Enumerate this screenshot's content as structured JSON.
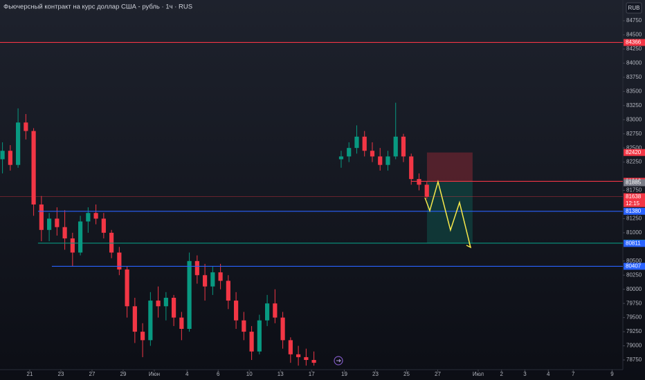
{
  "chart_data": {
    "type": "candlestick",
    "title": "Фьючерсный контракт на курс доллар США - рубль · 1ч · RUS",
    "currency": "RUB",
    "xlim": [
      -1.91,
      38.09
    ],
    "ylim": [
      78579,
      85117
    ],
    "xticks": [
      {
        "value": 0,
        "label": "21"
      },
      {
        "value": 2,
        "label": "23"
      },
      {
        "value": 4,
        "label": "27"
      },
      {
        "value": 6,
        "label": "29"
      },
      {
        "value": 8,
        "label": "Июн"
      },
      {
        "value": 10.1,
        "label": "4"
      },
      {
        "value": 12.1,
        "label": "6"
      },
      {
        "value": 14.1,
        "label": "10"
      },
      {
        "value": 16.1,
        "label": "13"
      },
      {
        "value": 18.1,
        "label": "17"
      },
      {
        "value": 20.2,
        "label": "19"
      },
      {
        "value": 22.2,
        "label": "23"
      },
      {
        "value": 24.2,
        "label": "25"
      },
      {
        "value": 26.2,
        "label": "27"
      },
      {
        "value": 28.8,
        "label": "Июл"
      },
      {
        "value": 30.3,
        "label": "2"
      },
      {
        "value": 31.8,
        "label": "3"
      },
      {
        "value": 33.3,
        "label": "4"
      },
      {
        "value": 34.9,
        "label": "7"
      },
      {
        "value": 37.4,
        "label": "9"
      }
    ],
    "yticks": [
      84750,
      84500,
      84250,
      84000,
      83750,
      83500,
      83250,
      83000,
      82750,
      82500,
      82250,
      81750,
      81250,
      81000,
      80500,
      80250,
      80000,
      79750,
      79500,
      79250,
      79000,
      78750
    ],
    "up_color": "#089981",
    "down_color": "#f23645",
    "candles": {
      "x": [
        -1.75,
        -1.25,
        -0.75,
        -0.25,
        0.25,
        0.75,
        1.25,
        1.75,
        2.25,
        2.75,
        3.25,
        3.75,
        4.25,
        4.75,
        5.25,
        5.75,
        6.25,
        6.75,
        7.25,
        7.75,
        8.25,
        8.75,
        9.25,
        9.75,
        10.25,
        10.75,
        11.25,
        11.75,
        12.25,
        12.75,
        13.25,
        13.75,
        14.25,
        14.75,
        15.25,
        15.75,
        16.25,
        16.75,
        17.25,
        17.75,
        18.25,
        20.0,
        20.5,
        21.0,
        21.5,
        22.0,
        22.5,
        23.0,
        23.5,
        24.0,
        24.5,
        25.0,
        25.5
      ],
      "open": [
        82300,
        82450,
        82200,
        82950,
        82800,
        81500,
        81050,
        81250,
        81100,
        80900,
        80650,
        81200,
        81350,
        81250,
        81000,
        80650,
        80350,
        79700,
        79250,
        79100,
        79800,
        79700,
        79850,
        79500,
        79300,
        80500,
        80250,
        80050,
        80300,
        80150,
        79800,
        79450,
        79250,
        78900,
        79450,
        79750,
        79500,
        79100,
        78850,
        78800,
        78750,
        82300,
        82350,
        82500,
        82700,
        82450,
        82350,
        82200,
        82350,
        82700,
        82350,
        81950,
        81850
      ],
      "high": [
        82600,
        82550,
        83200,
        83100,
        82850,
        81650,
        81350,
        81450,
        81400,
        81000,
        81300,
        81450,
        81500,
        81350,
        81050,
        80750,
        80400,
        79850,
        79400,
        79950,
        80050,
        79950,
        79900,
        79600,
        80650,
        80600,
        80450,
        80400,
        80450,
        80250,
        79950,
        79600,
        79350,
        79550,
        79900,
        80000,
        79600,
        79150,
        79000,
        78950,
        78900,
        82450,
        82600,
        82900,
        82800,
        82600,
        82500,
        82450,
        83300,
        82750,
        82400,
        82050,
        81900
      ],
      "low": [
        82050,
        82100,
        82150,
        82650,
        81300,
        80850,
        80850,
        80950,
        80700,
        80400,
        80600,
        81000,
        81150,
        80900,
        80550,
        80250,
        79500,
        79050,
        78800,
        79000,
        79500,
        79450,
        79350,
        79100,
        79250,
        80100,
        79800,
        79900,
        80000,
        79650,
        79300,
        79100,
        78750,
        78850,
        79350,
        79400,
        78950,
        78700,
        78650,
        78650,
        78650,
        82150,
        82250,
        82400,
        82350,
        82250,
        82100,
        82100,
        82300,
        82250,
        81850,
        81750,
        81600
      ],
      "close": [
        82450,
        82200,
        82950,
        82800,
        81500,
        81050,
        81250,
        81100,
        80900,
        80650,
        81200,
        81350,
        81250,
        81000,
        80650,
        80350,
        79700,
        79250,
        79100,
        79800,
        79700,
        79850,
        79500,
        79300,
        80500,
        80250,
        80050,
        80300,
        80150,
        79800,
        79450,
        79250,
        78900,
        79450,
        79750,
        79500,
        79100,
        78850,
        78800,
        78750,
        78700,
        82350,
        82500,
        82700,
        82450,
        82350,
        82200,
        82350,
        82700,
        82350,
        81950,
        81850,
        81638
      ]
    },
    "levels": [
      {
        "value": 84366,
        "color": "#f23645",
        "line": true,
        "x_start": -1.91
      },
      {
        "value": 82420,
        "color": "#f23645",
        "line": false
      },
      {
        "value": 81910,
        "color": "#f23645",
        "line": true,
        "x_start": 24.5
      },
      {
        "value": 81885,
        "color": "#787b86",
        "line": false
      },
      {
        "value": 81638,
        "color": "#f23645",
        "line": true,
        "x_start": -1.91,
        "countdown": "12:15"
      },
      {
        "value": 81380,
        "color": "#2962ff",
        "line": true,
        "x_start": 0.53
      },
      {
        "value": 80816,
        "color": "#089981",
        "line": true,
        "x_start": 0.53
      },
      {
        "value": 80811,
        "color": "#2962ff",
        "line": false
      },
      {
        "value": 80407,
        "color": "#2962ff",
        "line": true,
        "x_start": 1.42
      }
    ],
    "position": {
      "x_start": 25.51,
      "x_end": 28.44,
      "stop": 82420,
      "entry": 81910,
      "target": 80816
    },
    "projection": {
      "color": "#f7e94b",
      "x": [
        25.38,
        25.69,
        26.22,
        27.02,
        27.6,
        28.31
      ],
      "values": [
        81622,
        81390,
        81903,
        81047,
        81536,
        80742
      ]
    }
  }
}
